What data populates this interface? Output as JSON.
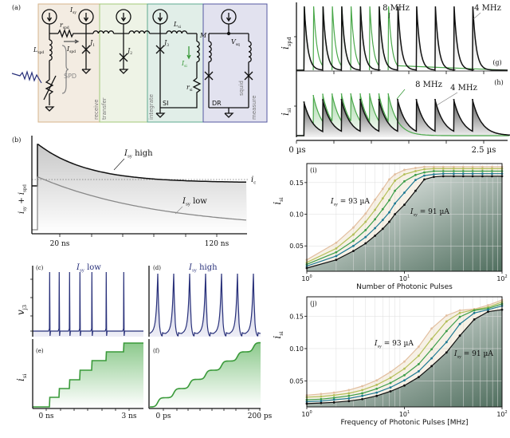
{
  "figure": {
    "panel_labels": {
      "a": "(a)",
      "b": "(b)",
      "c": "(c)",
      "d": "(d)",
      "e": "(e)",
      "f": "(f)",
      "g": "(g)",
      "h": "(h)",
      "i": "(i)",
      "j": "(j)"
    },
    "colors": {
      "receive": "#f3ece2",
      "transfer": "#eef3e6",
      "integrate": "#e1eee8",
      "measure": "#e2e2ef",
      "green": "#3a9a3a",
      "navy": "#28307a",
      "black": "#111111",
      "gray": "#8a8a8a"
    }
  },
  "circuit": {
    "I_sy": {
      "main": "I",
      "sub": "sy"
    },
    "r_spd": {
      "main": "r",
      "sub": "spd"
    },
    "I_spd": {
      "main": "I",
      "sub": "spd"
    },
    "L_spd": {
      "main": "L",
      "sub": "spd"
    },
    "J1": {
      "main": "J",
      "sub": "1"
    },
    "J2": {
      "main": "J",
      "sub": "2"
    },
    "J3": {
      "main": "J",
      "sub": "3"
    },
    "L_si": {
      "main": "L",
      "sub": "si"
    },
    "M": {
      "main": "M",
      "sub": ""
    },
    "V_sq": {
      "main": "V",
      "sub": "sq"
    },
    "I_si": {
      "main": "I",
      "sub": "si"
    },
    "r_si": {
      "main": "r",
      "sub": "si"
    },
    "SPD": "SPD",
    "SI": "SI",
    "DR": "DR",
    "regions": [
      "receive",
      "transfer",
      "integrate",
      "squid",
      "measure"
    ]
  },
  "panel_b": {
    "ylabel": {
      "main": "i",
      "sub": "sy",
      "plus": " + ",
      "main2": "i",
      "sub2": "spd"
    },
    "ic": {
      "main": "i",
      "sub": "c"
    },
    "high": {
      "main": "I",
      "sub": "sy",
      "rest": " high"
    },
    "low": {
      "main": "I",
      "sub": "sy",
      "rest": " low"
    },
    "xticks": [
      "20 ns",
      "120 ns"
    ]
  },
  "panel_cd": {
    "ylabel": {
      "main": "v",
      "sub": "j3"
    },
    "c_title": {
      "main": "I",
      "sub": "sy",
      "rest": " low"
    },
    "d_title": {
      "main": "I",
      "sub": "sy",
      "rest": " high"
    }
  },
  "panel_ef": {
    "ylabel": {
      "main": "i",
      "sub": "si"
    },
    "e_xticks": [
      "0 ns",
      "3 ns"
    ],
    "f_xticks": [
      "0 ps",
      "200 ps"
    ]
  },
  "panel_gh": {
    "g_ylabel": {
      "main": "i",
      "sub": "spd"
    },
    "h_ylabel": {
      "main": "i",
      "sub": "si"
    },
    "f8": "8 MHz",
    "f4": "4 MHz",
    "xticks": [
      "0 µs",
      "2.5 µs"
    ]
  },
  "chart_data": [
    {
      "panel": "i",
      "type": "line",
      "xlabel": "Number of Photonic Pulses",
      "ylabel": {
        "main": "i",
        "sub": "si"
      },
      "xscale": "log",
      "xlim": [
        1,
        100
      ],
      "ylim": [
        0.01,
        0.18
      ],
      "xticks": [
        "10",
        "10",
        "10"
      ],
      "xtick_exp": [
        "0",
        "1",
        "2"
      ],
      "yticks": [
        "0.05",
        "0.10",
        "0.15"
      ],
      "grid": true,
      "annotations": [
        {
          "main": "I",
          "sub": "sy",
          "rest": " = 93 µA"
        },
        {
          "main": "I",
          "sub": "sy",
          "rest": " = 91 µA"
        }
      ],
      "x": [
        1,
        2,
        3,
        4,
        5,
        6,
        7,
        8,
        10,
        13,
        16,
        20,
        25,
        32,
        40,
        50,
        63,
        79,
        100
      ],
      "series": [
        {
          "color": "#e2bfa0",
          "values": [
            0.028,
            0.055,
            0.079,
            0.101,
            0.123,
            0.14,
            0.155,
            0.163,
            0.17,
            0.173,
            0.175,
            0.175,
            0.175,
            0.175,
            0.175,
            0.175,
            0.175,
            0.175,
            0.175
          ]
        },
        {
          "color": "#b4bf5a",
          "values": [
            0.024,
            0.046,
            0.068,
            0.088,
            0.107,
            0.125,
            0.14,
            0.153,
            0.163,
            0.168,
            0.171,
            0.172,
            0.172,
            0.172,
            0.172,
            0.172,
            0.172,
            0.172,
            0.172
          ]
        },
        {
          "color": "#3d9e4a",
          "values": [
            0.021,
            0.04,
            0.058,
            0.075,
            0.092,
            0.108,
            0.122,
            0.137,
            0.152,
            0.162,
            0.166,
            0.168,
            0.168,
            0.168,
            0.168,
            0.168,
            0.168,
            0.168,
            0.168
          ]
        },
        {
          "color": "#1f7a94",
          "values": [
            0.018,
            0.034,
            0.05,
            0.064,
            0.078,
            0.091,
            0.103,
            0.117,
            0.134,
            0.154,
            0.161,
            0.163,
            0.164,
            0.164,
            0.164,
            0.164,
            0.164,
            0.164,
            0.164
          ]
        },
        {
          "color": "#111111",
          "values": [
            0.015,
            0.028,
            0.042,
            0.054,
            0.066,
            0.077,
            0.088,
            0.1,
            0.115,
            0.137,
            0.155,
            0.159,
            0.16,
            0.16,
            0.16,
            0.16,
            0.16,
            0.16,
            0.16
          ]
        }
      ]
    },
    {
      "panel": "j",
      "type": "line",
      "xlabel": "Frequency of Photonic Pulses [MHz]",
      "ylabel": {
        "main": "i",
        "sub": "si"
      },
      "xscale": "log",
      "xlim": [
        1,
        100
      ],
      "ylim": [
        0.01,
        0.18
      ],
      "xticks": [
        "10",
        "10",
        "10"
      ],
      "xtick_exp": [
        "0",
        "1",
        "2"
      ],
      "yticks": [
        "0.05",
        "0.10",
        "0.15"
      ],
      "grid": true,
      "annotations": [
        {
          "main": "I",
          "sub": "sy",
          "rest": " = 93 µA"
        },
        {
          "main": "I",
          "sub": "sy",
          "rest": " = 91 µA"
        }
      ],
      "x": [
        1,
        1.4,
        1.9,
        2.7,
        3.7,
        5.2,
        7.2,
        10,
        14,
        19,
        27,
        37,
        52,
        72,
        100
      ],
      "series": [
        {
          "color": "#e2bfa0",
          "values": [
            0.028,
            0.03,
            0.032,
            0.036,
            0.042,
            0.051,
            0.064,
            0.08,
            0.103,
            0.131,
            0.151,
            0.159,
            0.161,
            0.167,
            0.175
          ]
        },
        {
          "color": "#b4bf5a",
          "values": [
            0.025,
            0.026,
            0.028,
            0.031,
            0.036,
            0.044,
            0.055,
            0.069,
            0.089,
            0.115,
            0.142,
            0.155,
            0.16,
            0.164,
            0.172
          ]
        },
        {
          "color": "#3d9e4a",
          "values": [
            0.021,
            0.022,
            0.024,
            0.027,
            0.031,
            0.038,
            0.047,
            0.059,
            0.076,
            0.099,
            0.127,
            0.149,
            0.159,
            0.162,
            0.169
          ]
        },
        {
          "color": "#1f7a94",
          "values": [
            0.018,
            0.019,
            0.021,
            0.023,
            0.027,
            0.032,
            0.04,
            0.051,
            0.065,
            0.085,
            0.11,
            0.138,
            0.155,
            0.16,
            0.166
          ]
        },
        {
          "color": "#111111",
          "values": [
            0.015,
            0.016,
            0.017,
            0.019,
            0.022,
            0.027,
            0.034,
            0.043,
            0.056,
            0.073,
            0.094,
            0.12,
            0.145,
            0.157,
            0.16
          ]
        }
      ]
    }
  ]
}
